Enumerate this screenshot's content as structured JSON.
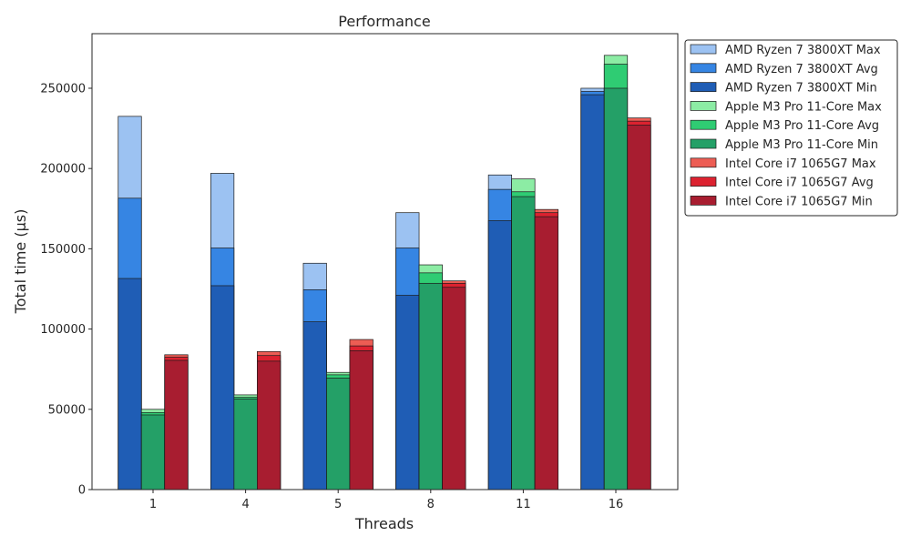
{
  "chart_data": {
    "type": "bar",
    "title": "Performance",
    "xlabel": "Threads",
    "ylabel": "Total time (µs)",
    "categories": [
      "1",
      "4",
      "5",
      "8",
      "11",
      "16"
    ],
    "ylim": [
      0,
      284000
    ],
    "yticks": [
      0,
      50000,
      100000,
      150000,
      200000,
      250000
    ],
    "legend_position": "outside-right-top",
    "grid": false,
    "groups": [
      {
        "name": "AMD Ryzen 7 3800XT",
        "series": [
          {
            "name": "AMD Ryzen 7 3800XT Max",
            "color": "#9cc2f2",
            "values": [
              232500,
              197000,
              141000,
              172500,
              196000,
              250000
            ]
          },
          {
            "name": "AMD Ryzen 7 3800XT Avg",
            "color": "#3685e3",
            "values": [
              181500,
              150500,
              124500,
              150500,
              187000,
              248000
            ]
          },
          {
            "name": "AMD Ryzen 7 3800XT Min",
            "color": "#1f5db5",
            "values": [
              131500,
              127000,
              104500,
              121000,
              167500,
              246000
            ]
          }
        ]
      },
      {
        "name": "Apple M3 Pro 11-Core",
        "series": [
          {
            "name": "Apple M3 Pro 11-Core Max",
            "color": "#8ceca4",
            "values": [
              50000,
              59000,
              73000,
              140000,
              193500,
              270500
            ]
          },
          {
            "name": "Apple M3 Pro 11-Core Avg",
            "color": "#2fcc73",
            "values": [
              48000,
              57500,
              71500,
              135000,
              185500,
              265000
            ]
          },
          {
            "name": "Apple M3 Pro 11-Core Min",
            "color": "#24a067",
            "values": [
              46500,
              56500,
              69500,
              128500,
              182500,
              250000
            ]
          }
        ]
      },
      {
        "name": "Intel Core i7 1065G7",
        "series": [
          {
            "name": "Intel Core i7 1065G7 Max",
            "color": "#ed5d54",
            "values": [
              84000,
              86000,
              93500,
              130000,
              174500,
              231500
            ]
          },
          {
            "name": "Intel Core i7 1065G7 Avg",
            "color": "#dc2230",
            "values": [
              82500,
              83500,
              89500,
              128500,
              172500,
              229500
            ]
          },
          {
            "name": "Intel Core i7 1065G7 Min",
            "color": "#a81d30",
            "values": [
              80500,
              80000,
              86500,
              126000,
              170000,
              227000
            ]
          }
        ]
      }
    ]
  }
}
